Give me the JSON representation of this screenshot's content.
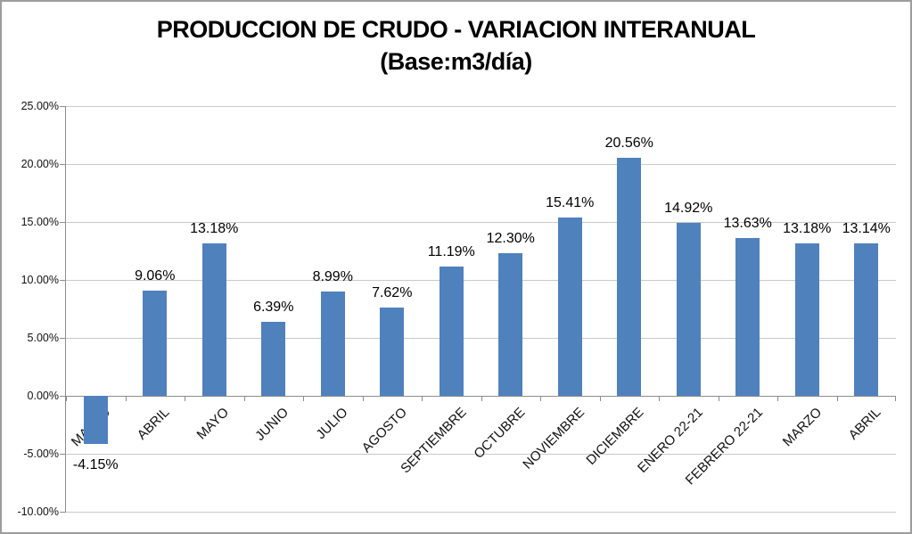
{
  "title": {
    "line1": "PRODUCCION DE CRUDO - VARIACION INTERANUAL",
    "line2": "(Base:m3/día)"
  },
  "chart_data": {
    "type": "bar",
    "title": "PRODUCCION DE CRUDO - VARIACION INTERANUAL (Base:m3/día)",
    "categories": [
      "MARZO",
      "ABRIL",
      "MAYO",
      "JUNIO",
      "JULIO",
      "AGOSTO",
      "SEPTIEMBRE",
      "OCTUBRE",
      "NOVIEMBRE",
      "DICIEMBRE",
      "ENERO 22-21",
      "FEBRERO 22-21",
      "MARZO",
      "ABRIL"
    ],
    "values": [
      -4.15,
      9.06,
      13.18,
      6.39,
      8.99,
      7.62,
      11.19,
      12.3,
      15.41,
      20.56,
      14.92,
      13.63,
      13.18,
      13.14
    ],
    "data_labels": [
      "-4.15%",
      "9.06%",
      "13.18%",
      "6.39%",
      "8.99%",
      "7.62%",
      "11.19%",
      "12.30%",
      "15.41%",
      "20.56%",
      "14.92%",
      "13.63%",
      "13.18%",
      "13.14%"
    ],
    "y_tick_labels": [
      "25.00%",
      "20.00%",
      "15.00%",
      "10.00%",
      "5.00%",
      "0.00%",
      "-5.00%",
      "-10.00%"
    ],
    "ylim": [
      -10,
      25
    ],
    "y_step": 5,
    "grid": true,
    "legend": "none",
    "xlabel": "",
    "ylabel": "",
    "bar_color": "#4F81BD"
  },
  "colors": {
    "bar": "#4F81BD",
    "gridline": "#c9c9c9",
    "axis_line": "#8c8c8c",
    "frame_border": "#9c9c9c",
    "text": "#000000"
  }
}
